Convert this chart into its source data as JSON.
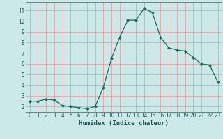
{
  "x": [
    0,
    1,
    2,
    3,
    4,
    5,
    6,
    7,
    8,
    9,
    10,
    11,
    12,
    13,
    14,
    15,
    16,
    17,
    18,
    19,
    20,
    21,
    22,
    23
  ],
  "y": [
    2.5,
    2.5,
    2.7,
    2.6,
    2.1,
    2.0,
    1.9,
    1.8,
    2.0,
    3.8,
    6.5,
    8.5,
    10.1,
    10.1,
    11.2,
    10.8,
    8.5,
    7.5,
    7.3,
    7.2,
    6.6,
    6.0,
    5.9,
    4.3
  ],
  "line_color": "#1a6b5a",
  "marker": "D",
  "marker_size": 2.0,
  "bg_color": "#cce8e8",
  "grid_color": "#e8a0a0",
  "xlabel": "Humidex (Indice chaleur)",
  "ylim": [
    1.5,
    11.8
  ],
  "xlim": [
    -0.5,
    23.5
  ],
  "yticks": [
    2,
    3,
    4,
    5,
    6,
    7,
    8,
    9,
    10,
    11
  ],
  "xticks": [
    0,
    1,
    2,
    3,
    4,
    5,
    6,
    7,
    8,
    9,
    10,
    11,
    12,
    13,
    14,
    15,
    16,
    17,
    18,
    19,
    20,
    21,
    22,
    23
  ],
  "tick_fontsize": 5.5,
  "xlabel_fontsize": 6.5
}
